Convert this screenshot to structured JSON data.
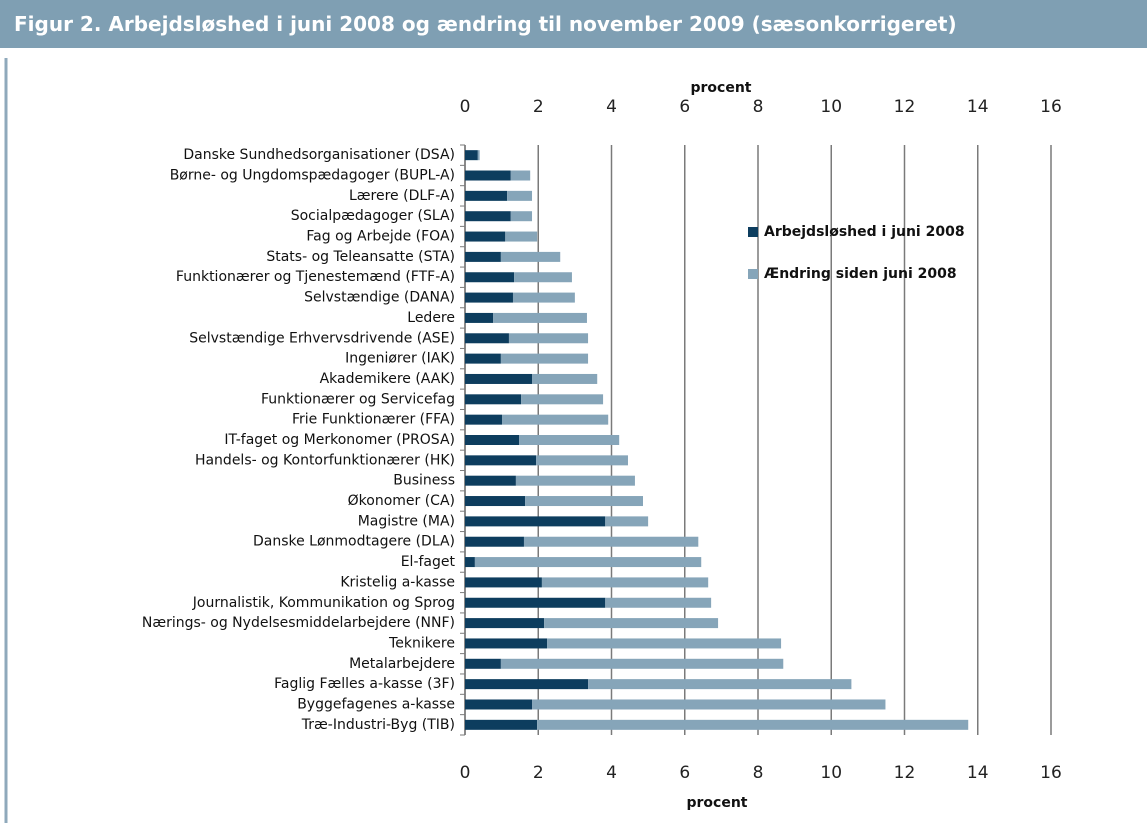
{
  "chart_data": {
    "type": "stacked-bar-horizontal",
    "title": "Figur 2. Arbejdsløshed i juni 2008 og ændring til november 2009 (sæsonkorrigeret)",
    "xlabel": "procent",
    "categories": [
      "Danske Sundhedsorganisationer (DSA)",
      "Børne- og Ungdomspædagoger (BUPL-A)",
      "Lærere (DLF-A)",
      "Socialpædagoger (SLA)",
      "Fag og Arbejde (FOA)",
      "Stats- og Teleansatte (STA)",
      "Funktionærer og Tjenestemænd (FTF-A)",
      "Selvstændige (DANA)",
      "Ledere",
      "Selvstændige Erhvervsdrivende (ASE)",
      "Ingeniører (IAK)",
      "Akademikere (AAK)",
      "Funktionærer og Servicefag",
      "Frie Funktionærer (FFA)",
      "IT-faget og Merkonomer (PROSA)",
      "Handels- og Kontorfunktionærer (HK)",
      "Business",
      "Økonomer (CA)",
      "Magistre (MA)",
      "Danske Lønmodtagere (DLA)",
      "El-faget",
      "Kristelig a-kasse",
      "Journalistik, Kommunikation og Sprog",
      "Nærings- og Nydelsesmiddelarbejdere (NNF)",
      "Teknikere",
      "Metalarbejdere",
      "Faglig Fælles a-kasse (3F)",
      "Byggefagenes a-kasse",
      "Træ-Industri-Byg (TIB)"
    ],
    "series": [
      {
        "name": "Arbejdsløshed i juni 2008",
        "color": "#0d3d5e",
        "values": [
          0.35,
          1.25,
          1.15,
          1.25,
          1.1,
          0.98,
          1.34,
          1.31,
          0.77,
          1.2,
          0.98,
          1.83,
          1.53,
          1.01,
          1.48,
          1.94,
          1.39,
          1.64,
          3.83,
          1.61,
          0.27,
          2.1,
          3.83,
          2.16,
          2.24,
          0.98,
          3.36,
          1.83,
          1.97
        ]
      },
      {
        "name": "Ændring siden juni 2008",
        "color": "#86a5b9",
        "values": [
          0.05,
          0.53,
          0.68,
          0.58,
          0.87,
          1.62,
          1.58,
          1.69,
          2.56,
          2.16,
          2.38,
          1.78,
          2.24,
          2.9,
          2.73,
          2.51,
          3.25,
          3.22,
          1.17,
          4.76,
          6.18,
          4.54,
          2.89,
          4.75,
          6.39,
          7.71,
          7.19,
          9.65,
          11.77
        ]
      }
    ],
    "xlim": [
      0,
      16
    ],
    "xticks": [
      0,
      2,
      4,
      6,
      8,
      10,
      12,
      14,
      16
    ],
    "grid": true
  }
}
